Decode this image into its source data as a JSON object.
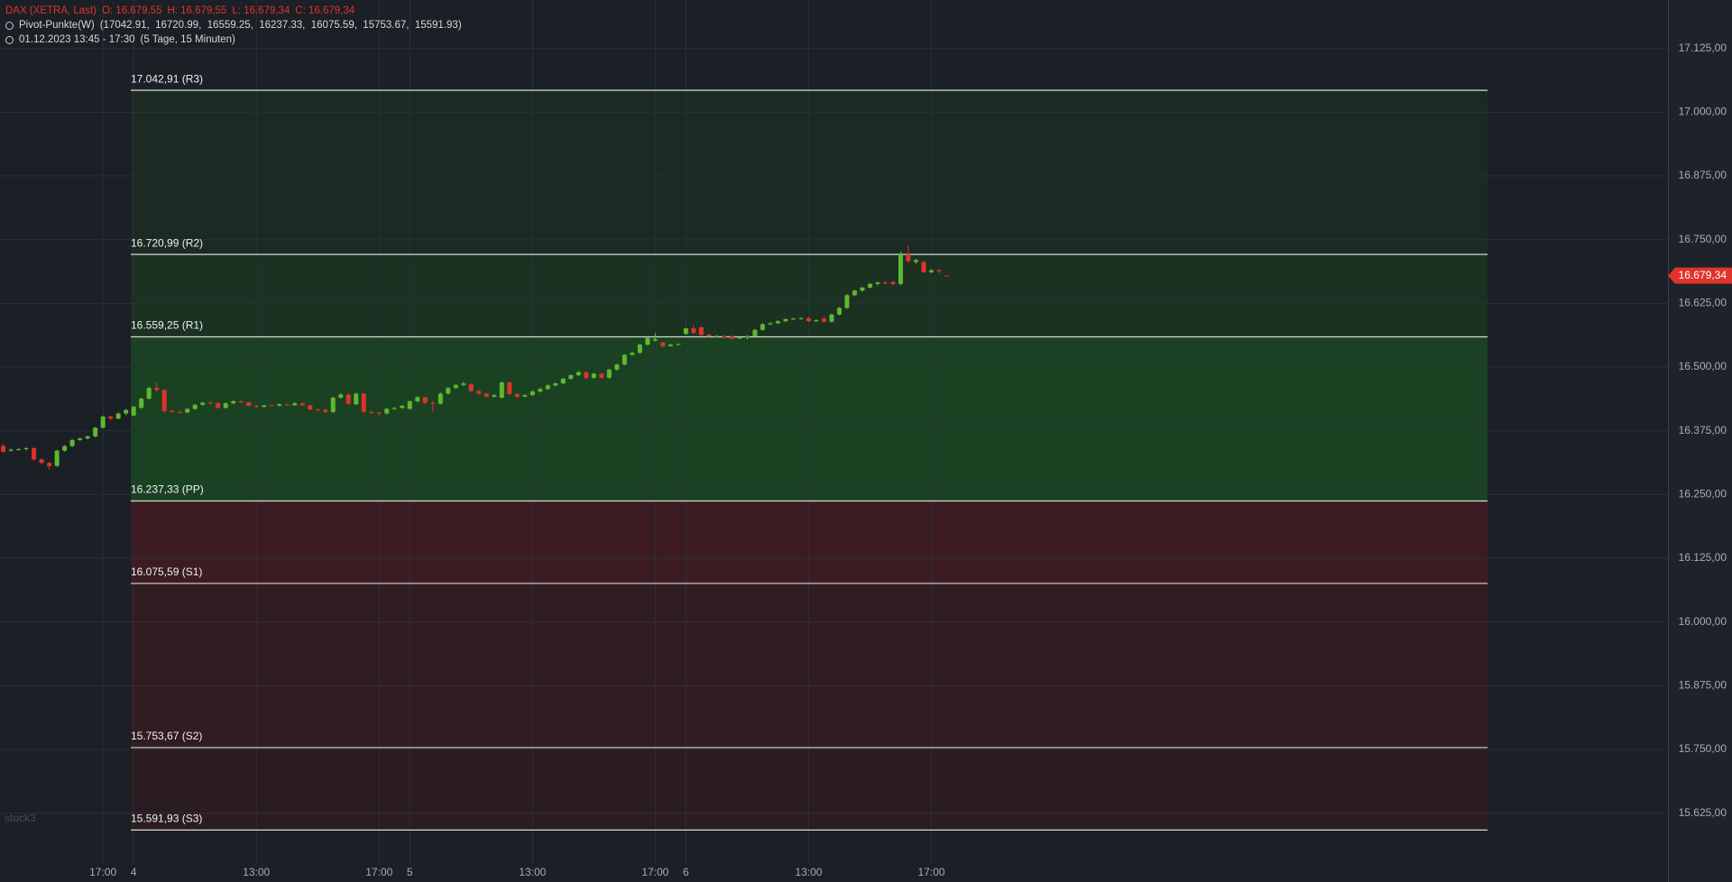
{
  "chart_data": {
    "type": "candlestick",
    "header": {
      "instrument": "DAX (XETRA, Last)",
      "ohlc": [
        "O: 16.679,55",
        "H: 16.679,55",
        "L: 16.679,34",
        "C: 16.679,34"
      ],
      "indicator": "Pivot-Punkte(W)",
      "indicator_values": "(17042.91,  16720.99,  16559.25,  16237.33,  16075.59,  15753.67,  15591.93)",
      "period": "01.12.2023 13:45 - 17:30",
      "period_detail": "(5 Tage, 15 Minuten)"
    },
    "watermark": "stock3",
    "categories": [
      null,
      null,
      null,
      null,
      null,
      null,
      null,
      null,
      null,
      null,
      null,
      null,
      null,
      "17:00",
      null,
      null,
      null,
      "4",
      null,
      null,
      null,
      null,
      null,
      null,
      null,
      null,
      null,
      null,
      null,
      null,
      null,
      null,
      null,
      "13:00",
      null,
      null,
      null,
      null,
      null,
      null,
      null,
      null,
      null,
      null,
      null,
      null,
      null,
      null,
      null,
      "17:00",
      null,
      null,
      null,
      "5",
      null,
      null,
      null,
      null,
      null,
      null,
      null,
      null,
      null,
      null,
      null,
      null,
      null,
      null,
      null,
      "13:00",
      null,
      null,
      null,
      null,
      null,
      null,
      null,
      null,
      null,
      null,
      null,
      null,
      null,
      null,
      null,
      "17:00",
      null,
      null,
      null,
      "6",
      null,
      null,
      null,
      null,
      null,
      null,
      null,
      null,
      null,
      null,
      null,
      null,
      null,
      null,
      null,
      "13:00",
      null,
      null,
      null,
      null,
      null,
      null,
      null,
      null,
      null,
      null,
      null,
      null,
      null,
      null,
      null,
      "17:00",
      null,
      null
    ],
    "open": [
      16345,
      16336,
      16338,
      16339,
      16341,
      16319,
      16312,
      16306,
      16336,
      16345,
      16357,
      16360,
      16364,
      16381,
      16403,
      16399,
      16409,
      16405,
      16420,
      16438,
      16459,
      16455,
      16414,
      16412,
      16411,
      16418,
      16426,
      16430,
      16429,
      16420,
      16429,
      16433,
      16431,
      16424,
      16422,
      16425,
      16424,
      16427,
      16425,
      16429,
      16425,
      16417,
      16416,
      16412,
      16440,
      16446,
      16427,
      16448,
      16412,
      16411,
      16409,
      16418,
      16420,
      16418,
      16433,
      16441,
      16430,
      16428,
      16448,
      16459,
      16465,
      16466,
      16453,
      16448,
      16442,
      16440,
      16470,
      16447,
      16442,
      16445,
      16452,
      16457,
      16464,
      16468,
      16477,
      16484,
      16490,
      16479,
      16487,
      16479,
      16495,
      16505,
      16524,
      16528,
      16544,
      16552,
      16548,
      16541,
      16544,
      16565,
      16576,
      16578,
      16564,
      16560,
      16561,
      16560,
      16556,
      16558,
      16560,
      16573,
      16584,
      16586,
      16590,
      16594,
      16595,
      16596,
      16590,
      16595,
      16589,
      16603,
      16616,
      16641,
      16650,
      16656,
      16663,
      16666,
      16667,
      16663,
      16721,
      16706,
      16706,
      16686,
      16690,
      16679.55
    ],
    "high": [
      16349,
      16340,
      16342,
      16343,
      16343,
      16321,
      16314,
      16338,
      16347,
      16359,
      16362,
      16366,
      16383,
      16405,
      16405,
      16411,
      16418,
      16424,
      16440,
      16461,
      16470,
      16457,
      16416,
      16415,
      16419,
      16428,
      16432,
      16433,
      16431,
      16431,
      16435,
      16434,
      16432,
      16426,
      16426,
      16427,
      16429,
      16428,
      16431,
      16430,
      16426,
      16419,
      16418,
      16442,
      16449,
      16448,
      16450,
      16449,
      16414,
      16412,
      16420,
      16421,
      16426,
      16435,
      16443,
      16442,
      16433,
      16450,
      16461,
      16467,
      16471,
      16468,
      16456,
      16450,
      16447,
      16472,
      16471,
      16449,
      16447,
      16455,
      16460,
      16466,
      16470,
      16479,
      16486,
      16492,
      16491,
      16489,
      16488,
      16497,
      16507,
      16526,
      16530,
      16546,
      16559,
      16567,
      16550,
      16546,
      16547,
      16578,
      16582,
      16580,
      16565,
      16563,
      16562,
      16562,
      16560,
      16563,
      16575,
      16586,
      16588,
      16592,
      16596,
      16597,
      16598,
      16599,
      16594,
      16600,
      16605,
      16618,
      16643,
      16652,
      16658,
      16665,
      16668,
      16669,
      16669,
      16727,
      16739,
      16712,
      16708,
      16692,
      16693,
      16679.55
    ],
    "low": [
      16332,
      16334,
      16336,
      16336,
      16316,
      16310,
      16299,
      16304,
      16334,
      16343,
      16355,
      16358,
      16362,
      16379,
      16396,
      16397,
      16405,
      16403,
      16418,
      16436,
      16452,
      16410,
      16410,
      16409,
      16409,
      16416,
      16424,
      16427,
      16418,
      16418,
      16427,
      16429,
      16423,
      16420,
      16421,
      16423,
      16423,
      16424,
      16424,
      16424,
      16415,
      16413,
      16410,
      16410,
      16438,
      16426,
      16425,
      16410,
      16408,
      16403,
      16407,
      16416,
      16418,
      16416,
      16431,
      16427,
      16412,
      16426,
      16446,
      16457,
      16463,
      16451,
      16445,
      16440,
      16440,
      16438,
      16445,
      16440,
      16441,
      16443,
      16450,
      16455,
      16462,
      16466,
      16475,
      16482,
      16476,
      16477,
      16477,
      16477,
      16493,
      16503,
      16522,
      16526,
      16542,
      16550,
      16539,
      16540,
      16543,
      16563,
      16565,
      16561,
      16559,
      16557,
      16556,
      16554,
      16555,
      16554,
      16558,
      16571,
      16582,
      16584,
      16588,
      16592,
      16593,
      16588,
      16588,
      16587,
      16587,
      16601,
      16614,
      16639,
      16648,
      16654,
      16660,
      16662,
      16660,
      16660,
      16705,
      16702,
      16684,
      16684,
      16684,
      16679.34
    ],
    "close": [
      16334,
      16338,
      16339,
      16341,
      16319,
      16312,
      16306,
      16336,
      16345,
      16357,
      16360,
      16364,
      16381,
      16403,
      16399,
      16409,
      16416,
      16422,
      16438,
      16459,
      16455,
      16414,
      16412,
      16411,
      16418,
      16426,
      16430,
      16429,
      16420,
      16429,
      16433,
      16431,
      16424,
      16422,
      16425,
      16424,
      16427,
      16425,
      16429,
      16425,
      16417,
      16416,
      16412,
      16440,
      16446,
      16428,
      16448,
      16412,
      16411,
      16409,
      16418,
      16420,
      16424,
      16433,
      16441,
      16430,
      16428,
      16448,
      16459,
      16465,
      16468,
      16453,
      16448,
      16442,
      16445,
      16470,
      16447,
      16442,
      16445,
      16452,
      16457,
      16464,
      16468,
      16477,
      16484,
      16490,
      16479,
      16487,
      16479,
      16495,
      16505,
      16524,
      16528,
      16544,
      16557,
      16555,
      16541,
      16544,
      16545,
      16576,
      16567,
      16563,
      16560,
      16561,
      16558,
      16556,
      16558,
      16560,
      16573,
      16584,
      16586,
      16590,
      16594,
      16595,
      16596,
      16590,
      16592,
      16589,
      16603,
      16616,
      16641,
      16650,
      16656,
      16663,
      16666,
      16665,
      16663,
      16723,
      16708,
      16710,
      16686,
      16690,
      16688,
      16679.34
    ],
    "up_color": "#5fb82f",
    "down_color": "#e0332b",
    "pivots": [
      {
        "value": 17042.91,
        "label": "17.042,91 (R3)"
      },
      {
        "value": 16720.99,
        "label": "16.720,99 (R2)"
      },
      {
        "value": 16559.25,
        "label": "16.559,25 (R1)"
      },
      {
        "value": 16237.33,
        "label": "16.237,33 (PP)"
      },
      {
        "value": 16075.59,
        "label": "16.075,59 (S1)"
      },
      {
        "value": 15753.67,
        "label": "15.753,67 (S2)"
      },
      {
        "value": 15591.93,
        "label": "15.591,93 (S3)"
      }
    ],
    "zone_colors": [
      "#1b2a23",
      "#1b3122",
      "#1a4222",
      "#3c1c22",
      "#311c21",
      "#2b1c22"
    ],
    "last_price": {
      "value": 16679.34,
      "label": "16.679,34"
    },
    "last_price_color": "#e0332b",
    "ylim": [
      15490,
      17220
    ],
    "yticks": [
      {
        "value": 17125,
        "label": "17.125,00"
      },
      {
        "value": 17000,
        "label": "17.000,00"
      },
      {
        "value": 16875,
        "label": "16.875,00"
      },
      {
        "value": 16750,
        "label": "16.750,00"
      },
      {
        "value": 16625,
        "label": "16.625,00"
      },
      {
        "value": 16500,
        "label": "16.500,00"
      },
      {
        "value": 16375,
        "label": "16.375,00"
      },
      {
        "value": 16250,
        "label": "16.250,00"
      },
      {
        "value": 16125,
        "label": "16.125,00"
      },
      {
        "value": 16000,
        "label": "16.000,00"
      },
      {
        "value": 15875,
        "label": "15.875,00"
      },
      {
        "value": 15750,
        "label": "15.750,00"
      },
      {
        "value": 15625,
        "label": "15.625,00"
      }
    ],
    "grid": true
  }
}
